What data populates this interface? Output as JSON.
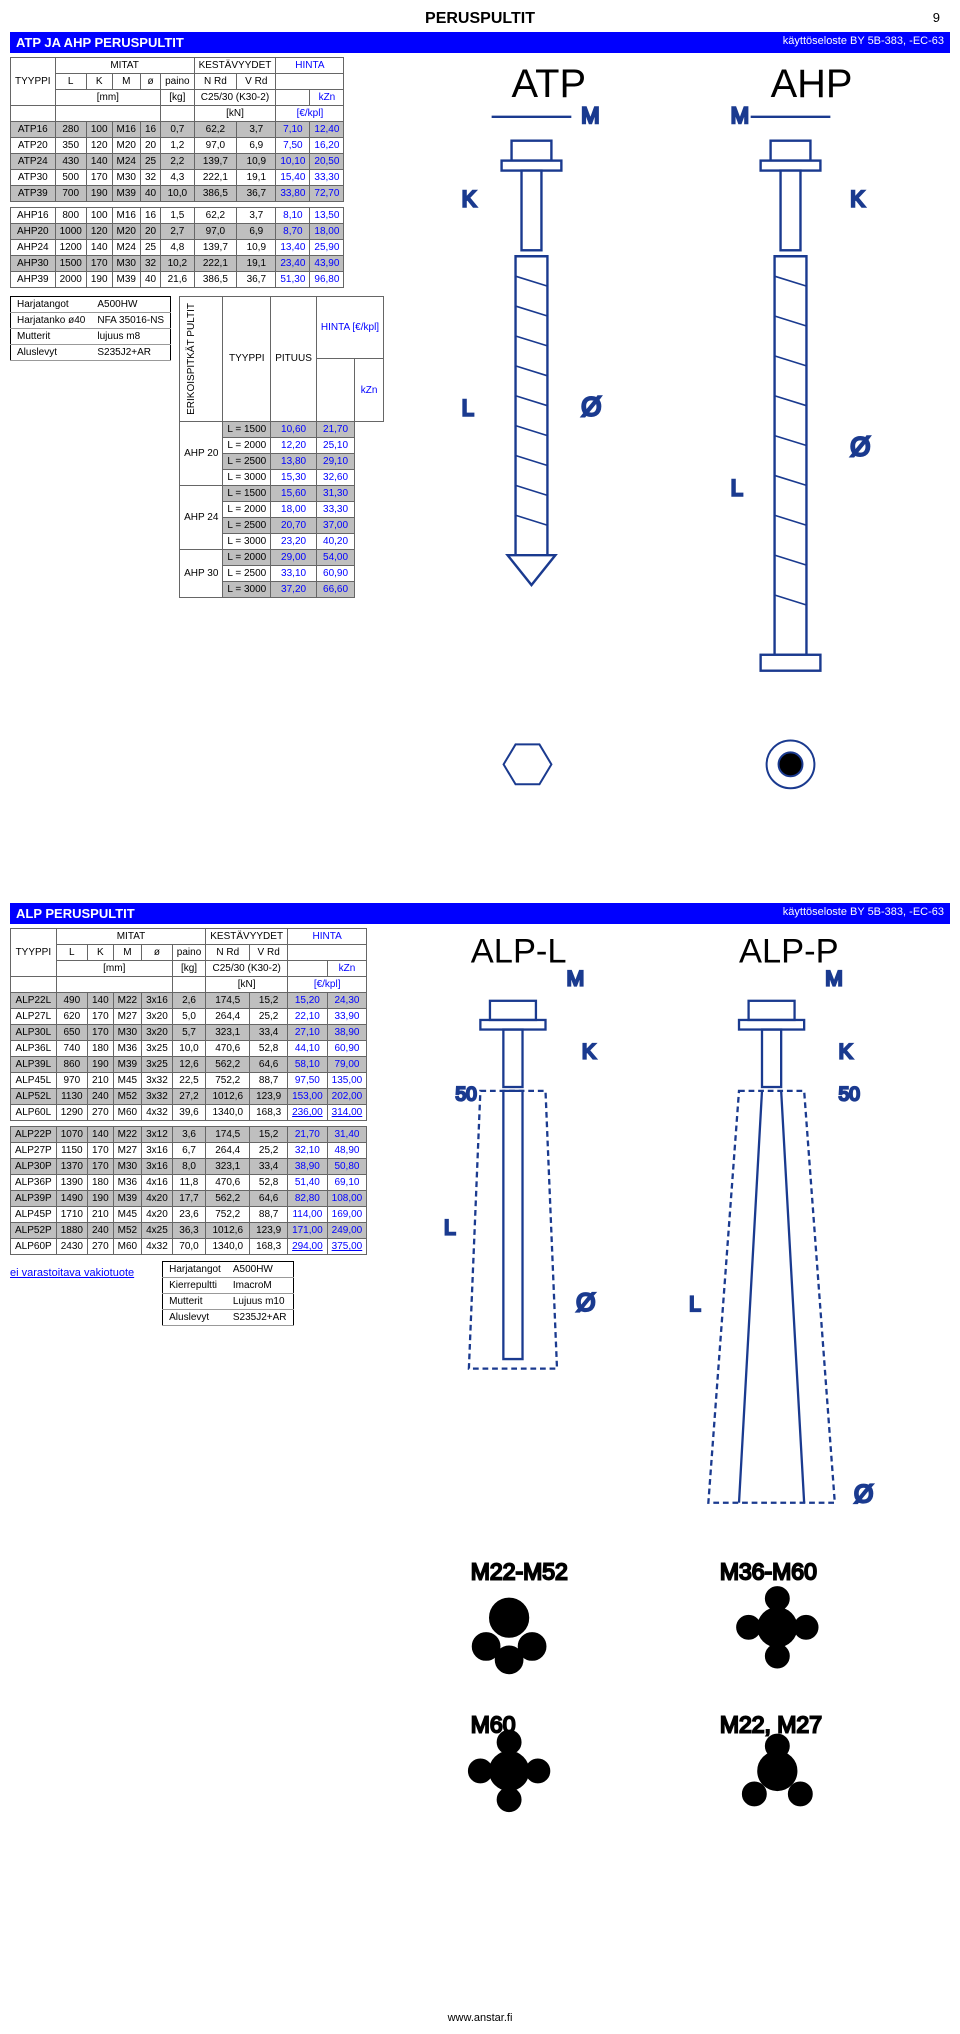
{
  "page": {
    "title": "PERUSPULTIT",
    "number": "9",
    "www": "www.anstar.fi"
  },
  "section1": {
    "title": "ATP JA AHP PERUSPULTIT",
    "note": "käyttöseloste BY 5B-383, -EC-63"
  },
  "section2": {
    "title": "ALP PERUSPULTIT",
    "note": "käyttöseloste BY 5B-383, -EC-63"
  },
  "headers": {
    "tyyppi": "TYYPPI",
    "mitat": "MITAT",
    "kest": "KESTÄVYYDET",
    "hinta": "HINTA",
    "L": "L",
    "K": "K",
    "M": "M",
    "o": "ø",
    "paino": "paino",
    "nrd": "N Rd",
    "vrd": "V Rd",
    "concrete": "C25/30 (K30-2)",
    "kzn": "kZn",
    "mm": "[mm]",
    "kg": "[kg]",
    "kn": "[kN]",
    "eur": "[€/kpl]",
    "pituus": "PITUUS",
    "hinta_eur": "HINTA [€/kpl]",
    "erikois": "ERIKOISPITKÄT PULTIT"
  },
  "atp": [
    {
      "t": "ATP16",
      "L": "280",
      "K": "100",
      "M": "M16",
      "o": "16",
      "p": "0,7",
      "n": "62,2",
      "v": "3,7",
      "h1": "7,10",
      "h2": "12,40",
      "shade": true
    },
    {
      "t": "ATP20",
      "L": "350",
      "K": "120",
      "M": "M20",
      "o": "20",
      "p": "1,2",
      "n": "97,0",
      "v": "6,9",
      "h1": "7,50",
      "h2": "16,20",
      "shade": false
    },
    {
      "t": "ATP24",
      "L": "430",
      "K": "140",
      "M": "M24",
      "o": "25",
      "p": "2,2",
      "n": "139,7",
      "v": "10,9",
      "h1": "10,10",
      "h2": "20,50",
      "shade": true
    },
    {
      "t": "ATP30",
      "L": "500",
      "K": "170",
      "M": "M30",
      "o": "32",
      "p": "4,3",
      "n": "222,1",
      "v": "19,1",
      "h1": "15,40",
      "h2": "33,30",
      "shade": false
    },
    {
      "t": "ATP39",
      "L": "700",
      "K": "190",
      "M": "M39",
      "o": "40",
      "p": "10,0",
      "n": "386,5",
      "v": "36,7",
      "h1": "33,80",
      "h2": "72,70",
      "shade": true
    }
  ],
  "ahp": [
    {
      "t": "AHP16",
      "L": "800",
      "K": "100",
      "M": "M16",
      "o": "16",
      "p": "1,5",
      "n": "62,2",
      "v": "3,7",
      "h1": "8,10",
      "h2": "13,50",
      "shade": false
    },
    {
      "t": "AHP20",
      "L": "1000",
      "K": "120",
      "M": "M20",
      "o": "20",
      "p": "2,7",
      "n": "97,0",
      "v": "6,9",
      "h1": "8,70",
      "h2": "18,00",
      "shade": true
    },
    {
      "t": "AHP24",
      "L": "1200",
      "K": "140",
      "M": "M24",
      "o": "25",
      "p": "4,8",
      "n": "139,7",
      "v": "10,9",
      "h1": "13,40",
      "h2": "25,90",
      "shade": false
    },
    {
      "t": "AHP30",
      "L": "1500",
      "K": "170",
      "M": "M30",
      "o": "32",
      "p": "10,2",
      "n": "222,1",
      "v": "19,1",
      "h1": "23,40",
      "h2": "43,90",
      "shade": true
    },
    {
      "t": "AHP39",
      "L": "2000",
      "K": "190",
      "M": "M39",
      "o": "40",
      "p": "21,6",
      "n": "386,5",
      "v": "36,7",
      "h1": "51,30",
      "h2": "96,80",
      "shade": false
    }
  ],
  "materials1": [
    [
      "Harjatangot",
      "A500HW"
    ],
    [
      "Harjatanko ø40",
      "NFA 35016-NS"
    ],
    [
      "Mutterit",
      "lujuus m8"
    ],
    [
      "Aluslevyt",
      "S235J2+AR"
    ]
  ],
  "erikois": [
    {
      "grp": "AHP 20",
      "rows": [
        [
          "L = 1500",
          "10,60",
          "21,70",
          true
        ],
        [
          "L = 2000",
          "12,20",
          "25,10",
          false
        ],
        [
          "L = 2500",
          "13,80",
          "29,10",
          true
        ],
        [
          "L = 3000",
          "15,30",
          "32,60",
          false
        ]
      ]
    },
    {
      "grp": "AHP 24",
      "rows": [
        [
          "L = 1500",
          "15,60",
          "31,30",
          true
        ],
        [
          "L = 2000",
          "18,00",
          "33,30",
          false
        ],
        [
          "L = 2500",
          "20,70",
          "37,00",
          true
        ],
        [
          "L = 3000",
          "23,20",
          "40,20",
          false
        ]
      ]
    },
    {
      "grp": "AHP 30",
      "rows": [
        [
          "L = 2000",
          "29,00",
          "54,00",
          true
        ],
        [
          "L = 2500",
          "33,10",
          "60,90",
          false
        ],
        [
          "L = 3000",
          "37,20",
          "66,60",
          true
        ]
      ]
    }
  ],
  "alpL": [
    {
      "t": "ALP22L",
      "L": "490",
      "K": "140",
      "M": "M22",
      "o": "3x16",
      "p": "2,6",
      "n": "174,5",
      "v": "15,2",
      "h1": "15,20",
      "h2": "24,30",
      "shade": true
    },
    {
      "t": "ALP27L",
      "L": "620",
      "K": "170",
      "M": "M27",
      "o": "3x20",
      "p": "5,0",
      "n": "264,4",
      "v": "25,2",
      "h1": "22,10",
      "h2": "33,90",
      "shade": false
    },
    {
      "t": "ALP30L",
      "L": "650",
      "K": "170",
      "M": "M30",
      "o": "3x20",
      "p": "5,7",
      "n": "323,1",
      "v": "33,4",
      "h1": "27,10",
      "h2": "38,90",
      "shade": true
    },
    {
      "t": "ALP36L",
      "L": "740",
      "K": "180",
      "M": "M36",
      "o": "3x25",
      "p": "10,0",
      "n": "470,6",
      "v": "52,8",
      "h1": "44,10",
      "h2": "60,90",
      "shade": false
    },
    {
      "t": "ALP39L",
      "L": "860",
      "K": "190",
      "M": "M39",
      "o": "3x25",
      "p": "12,6",
      "n": "562,2",
      "v": "64,6",
      "h1": "58,10",
      "h2": "79,00",
      "shade": true
    },
    {
      "t": "ALP45L",
      "L": "970",
      "K": "210",
      "M": "M45",
      "o": "3x32",
      "p": "22,5",
      "n": "752,2",
      "v": "88,7",
      "h1": "97,50",
      "h2": "135,00",
      "shade": false
    },
    {
      "t": "ALP52L",
      "L": "1130",
      "K": "240",
      "M": "M52",
      "o": "3x32",
      "p": "27,2",
      "n": "1012,6",
      "v": "123,9",
      "h1": "153,00",
      "h2": "202,00",
      "shade": true
    },
    {
      "t": "ALP60L",
      "L": "1290",
      "K": "270",
      "M": "M60",
      "o": "4x32",
      "p": "39,6",
      "n": "1340,0",
      "v": "168,3",
      "h1": "236,00",
      "h2": "314,00",
      "shade": false,
      "ul": true
    }
  ],
  "alpP": [
    {
      "t": "ALP22P",
      "L": "1070",
      "K": "140",
      "M": "M22",
      "o": "3x12",
      "p": "3,6",
      "n": "174,5",
      "v": "15,2",
      "h1": "21,70",
      "h2": "31,40",
      "shade": true
    },
    {
      "t": "ALP27P",
      "L": "1150",
      "K": "170",
      "M": "M27",
      "o": "3x16",
      "p": "6,7",
      "n": "264,4",
      "v": "25,2",
      "h1": "32,10",
      "h2": "48,90",
      "shade": false
    },
    {
      "t": "ALP30P",
      "L": "1370",
      "K": "170",
      "M": "M30",
      "o": "3x16",
      "p": "8,0",
      "n": "323,1",
      "v": "33,4",
      "h1": "38,90",
      "h2": "50,80",
      "shade": true
    },
    {
      "t": "ALP36P",
      "L": "1390",
      "K": "180",
      "M": "M36",
      "o": "4x16",
      "p": "11,8",
      "n": "470,6",
      "v": "52,8",
      "h1": "51,40",
      "h2": "69,10",
      "shade": false
    },
    {
      "t": "ALP39P",
      "L": "1490",
      "K": "190",
      "M": "M39",
      "o": "4x20",
      "p": "17,7",
      "n": "562,2",
      "v": "64,6",
      "h1": "82,80",
      "h2": "108,00",
      "shade": true
    },
    {
      "t": "ALP45P",
      "L": "1710",
      "K": "210",
      "M": "M45",
      "o": "4x20",
      "p": "23,6",
      "n": "752,2",
      "v": "88,7",
      "h1": "114,00",
      "h2": "169,00",
      "shade": false
    },
    {
      "t": "ALP52P",
      "L": "1880",
      "K": "240",
      "M": "M52",
      "o": "4x25",
      "p": "36,3",
      "n": "1012,6",
      "v": "123,9",
      "h1": "171,00",
      "h2": "249,00",
      "shade": true
    },
    {
      "t": "ALP60P",
      "L": "2430",
      "K": "270",
      "M": "M60",
      "o": "4x32",
      "p": "70,0",
      "n": "1340,0",
      "v": "168,3",
      "h1": "294,00",
      "h2": "375,00",
      "shade": false,
      "ul": true
    }
  ],
  "materials2": [
    [
      "Harjatangot",
      "A500HW"
    ],
    [
      "Kierrepultti",
      "ImacroM"
    ],
    [
      "Mutterit",
      "Lujuus m10"
    ],
    [
      "Aluslevyt",
      "S235J2+AR"
    ]
  ],
  "stocknote": "ei varastoitava vakiotuote",
  "diag": {
    "atp": "ATP",
    "ahp": "AHP",
    "alpl": "ALP-L",
    "alpp": "ALP-P",
    "M": "M",
    "K": "K",
    "L": "L",
    "O": "Ø",
    "fifty": "50",
    "m22m52": "M22-M52",
    "m60": "M60",
    "m36m60": "M36-M60",
    "m22m27": "M22, M27"
  },
  "colors": {
    "blue": "#0000ff",
    "shade": "#bfbfbf",
    "diagblue": "#1a3a8f"
  }
}
